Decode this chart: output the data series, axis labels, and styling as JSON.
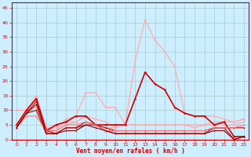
{
  "xlabel": "Vent moyen/en rafales ( km/h )",
  "bg_color": "#cceeff",
  "grid_color": "#aacccc",
  "xlim": [
    -0.5,
    23.5
  ],
  "ylim": [
    0,
    47
  ],
  "yticks": [
    0,
    5,
    10,
    15,
    20,
    25,
    30,
    35,
    40,
    45
  ],
  "xticks": [
    0,
    1,
    2,
    3,
    4,
    5,
    6,
    7,
    8,
    9,
    10,
    11,
    12,
    13,
    14,
    15,
    16,
    17,
    18,
    19,
    20,
    21,
    22,
    23
  ],
  "series": [
    {
      "x": [
        0,
        1,
        2,
        3,
        4,
        5,
        6,
        7,
        8,
        9,
        10,
        11,
        12,
        13,
        14,
        15,
        16,
        17,
        18,
        19,
        20,
        21,
        22,
        23
      ],
      "y": [
        4,
        10,
        14,
        3,
        3,
        5,
        6,
        8,
        5,
        4,
        4,
        5,
        27,
        41,
        34,
        30,
        25,
        9,
        8,
        8,
        8,
        7,
        6,
        7
      ],
      "color": "#ffaaaa",
      "lw": 0.9,
      "ms": 2.5
    },
    {
      "x": [
        0,
        1,
        2,
        3,
        4,
        5,
        6,
        7,
        8,
        9,
        10,
        11,
        12,
        13,
        14,
        15,
        16,
        17,
        18,
        19,
        20,
        21,
        22,
        23
      ],
      "y": [
        5,
        10,
        15,
        4,
        3,
        7,
        8,
        16,
        16,
        11,
        11,
        5,
        5,
        5,
        5,
        5,
        5,
        5,
        5,
        5,
        6,
        6,
        6,
        7
      ],
      "color": "#ffaaaa",
      "lw": 0.9,
      "ms": 2.5
    },
    {
      "x": [
        0,
        1,
        2,
        3,
        4,
        5,
        6,
        7,
        8,
        9,
        10,
        11,
        12,
        13,
        14,
        15,
        16,
        17,
        18,
        19,
        20,
        21,
        22,
        23
      ],
      "y": [
        10,
        10,
        11,
        4,
        4,
        6,
        6,
        8,
        7,
        6,
        4,
        5,
        5,
        5,
        5,
        5,
        5,
        5,
        4,
        5,
        5,
        5,
        5,
        6
      ],
      "color": "#ffaaaa",
      "lw": 0.9,
      "ms": 2.5
    },
    {
      "x": [
        0,
        1,
        2,
        3,
        4,
        5,
        6,
        7,
        8,
        9,
        10,
        11,
        12,
        13,
        14,
        15,
        16,
        17,
        18,
        19,
        20,
        21,
        22,
        23
      ],
      "y": [
        5,
        10,
        14,
        3,
        5,
        6,
        8,
        8,
        5,
        5,
        5,
        5,
        14,
        23,
        19,
        17,
        11,
        9,
        8,
        8,
        5,
        6,
        1,
        1
      ],
      "color": "#cc0000",
      "lw": 1.2,
      "ms": 3.0
    },
    {
      "x": [
        0,
        1,
        2,
        3,
        4,
        5,
        6,
        7,
        8,
        9,
        10,
        11,
        12,
        13,
        14,
        15,
        16,
        17,
        18,
        19,
        20,
        21,
        22,
        23
      ],
      "y": [
        4,
        9,
        10,
        2,
        2,
        4,
        4,
        5,
        5,
        3,
        2,
        2,
        2,
        2,
        2,
        2,
        2,
        2,
        2,
        2,
        4,
        4,
        0,
        1
      ],
      "color": "#aa0000",
      "lw": 0.8,
      "ms": 2.0
    },
    {
      "x": [
        0,
        1,
        2,
        3,
        4,
        5,
        6,
        7,
        8,
        9,
        10,
        11,
        12,
        13,
        14,
        15,
        16,
        17,
        18,
        19,
        20,
        21,
        22,
        23
      ],
      "y": [
        4,
        9,
        13,
        3,
        2,
        4,
        4,
        6,
        5,
        4,
        3,
        3,
        3,
        3,
        3,
        3,
        3,
        3,
        3,
        3,
        4,
        4,
        4,
        4
      ],
      "color": "#cc0000",
      "lw": 0.8,
      "ms": 2.0
    },
    {
      "x": [
        0,
        1,
        2,
        3,
        4,
        5,
        6,
        7,
        8,
        9,
        10,
        11,
        12,
        13,
        14,
        15,
        16,
        17,
        18,
        19,
        20,
        21,
        22,
        23
      ],
      "y": [
        4,
        8,
        8,
        3,
        3,
        5,
        5,
        6,
        5,
        3,
        3,
        3,
        3,
        3,
        3,
        3,
        3,
        3,
        3,
        3,
        4,
        4,
        4,
        5
      ],
      "color": "#ff7777",
      "lw": 0.8,
      "ms": 2.0
    },
    {
      "x": [
        0,
        1,
        2,
        3,
        4,
        5,
        6,
        7,
        8,
        9,
        10,
        11,
        12,
        13,
        14,
        15,
        16,
        17,
        18,
        19,
        20,
        21,
        22,
        23
      ],
      "y": [
        4,
        9,
        12,
        2,
        2,
        3,
        3,
        5,
        4,
        3,
        2,
        2,
        2,
        2,
        2,
        2,
        2,
        2,
        2,
        2,
        3,
        3,
        0,
        1
      ],
      "color": "#880000",
      "lw": 0.8,
      "ms": 1.5
    }
  ]
}
